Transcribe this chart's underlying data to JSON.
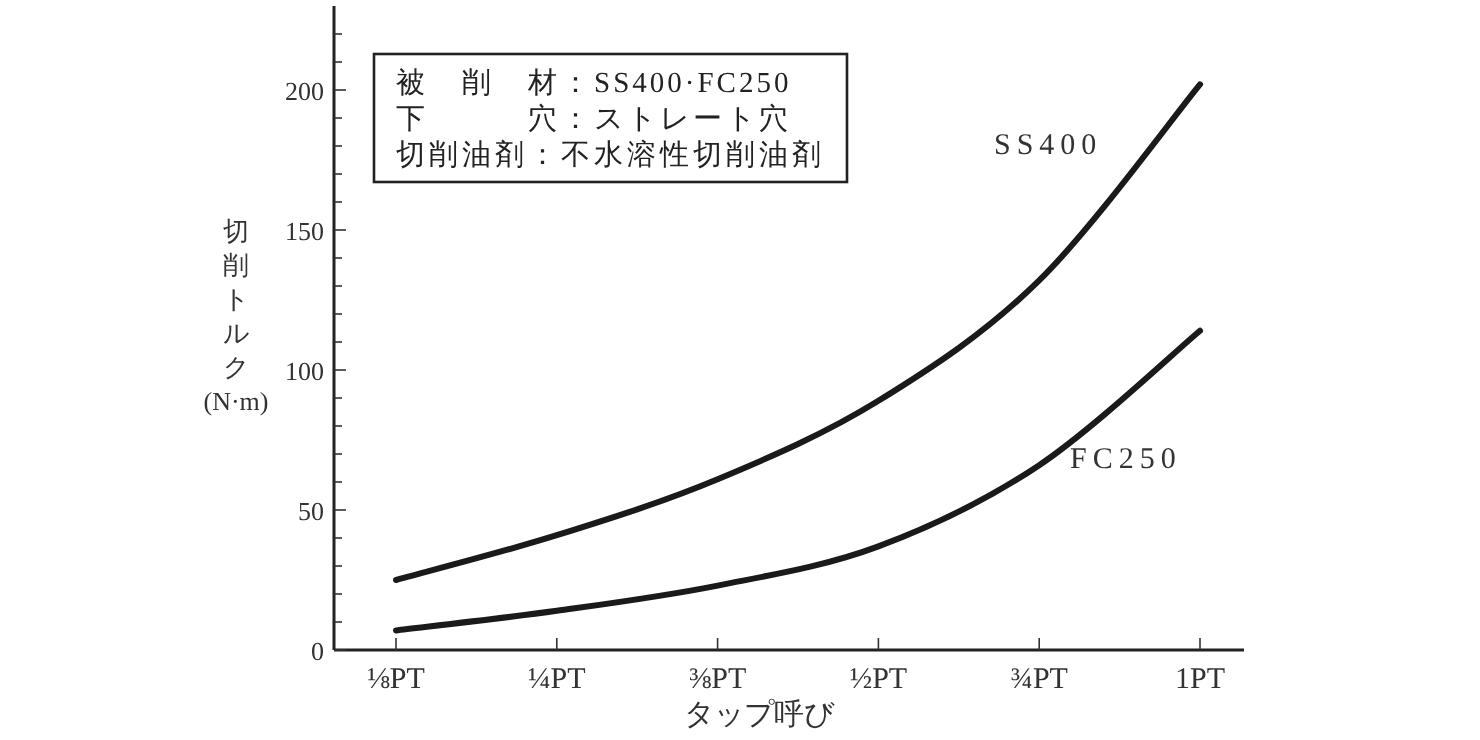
{
  "chart_data": {
    "type": "line",
    "xlabel": "タップ呼び",
    "ylabel": "切削トルク(N·m)",
    "annotations": [
      "被　削　材：SS400·FC250",
      "下　　　穴：ストレート穴",
      "切削油剤：不水溶性切削油剤"
    ],
    "series": [
      {
        "name": "SS400",
        "color": "#1a1a1a",
        "values": [
          25,
          41,
          61,
          89,
          132,
          202
        ]
      },
      {
        "name": "FC250",
        "color": "#1a1a1a",
        "values": [
          7,
          14,
          23,
          37,
          66,
          114
        ]
      }
    ],
    "categories": [
      "⅛PT",
      "¼PT",
      "⅜PT",
      "½PT",
      "¾PT",
      "1PT"
    ],
    "ylim": [
      0,
      230
    ],
    "yticks": [
      0,
      {
        "value": 10,
        "label": null
      },
      {
        "value": 20,
        "label": null
      },
      {
        "value": 30,
        "label": null
      },
      {
        "value": 40,
        "label": null
      },
      50,
      {
        "value": 60,
        "label": null
      },
      {
        "value": 70,
        "label": null
      },
      {
        "value": 80,
        "label": null
      },
      {
        "value": 90,
        "label": null
      },
      100,
      {
        "value": 110,
        "label": null
      },
      {
        "value": 120,
        "label": null
      },
      {
        "value": 130,
        "label": null
      },
      {
        "value": 140,
        "label": null
      },
      150,
      {
        "value": 160,
        "label": null
      },
      {
        "value": 170,
        "label": null
      },
      {
        "value": 180,
        "label": null
      },
      {
        "value": 190,
        "label": null
      },
      200,
      {
        "value": 210,
        "label": null
      },
      {
        "value": 220,
        "label": null
      }
    ],
    "grid": false,
    "legend": false,
    "marker": "none",
    "line_style": "solid"
  }
}
